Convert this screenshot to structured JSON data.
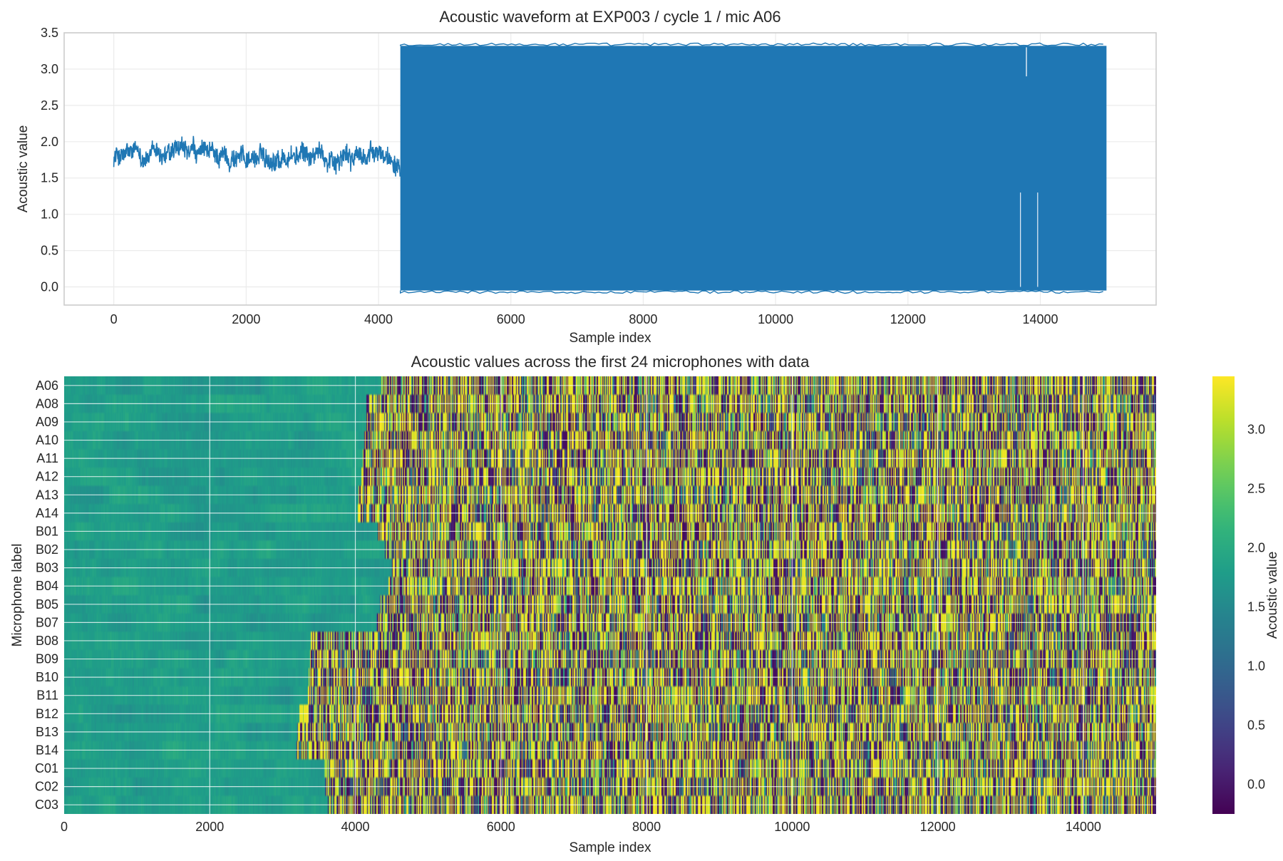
{
  "figure": {
    "background": "#ffffff",
    "line_color": "#1f77b4",
    "grid_color": "#ebebeb",
    "spine_color": "#cccccc",
    "colormap": "viridis"
  },
  "chart_data": [
    {
      "type": "line",
      "title": "Acoustic waveform at EXP003 / cycle 1 / mic A06",
      "xlabel": "Sample index",
      "ylabel": "Acoustic value",
      "xlim": [
        -750,
        15750
      ],
      "ylim": [
        -0.25,
        3.5
      ],
      "xticks": [
        0,
        2000,
        4000,
        6000,
        8000,
        10000,
        12000,
        14000
      ],
      "yticks": [
        0.0,
        0.5,
        1.0,
        1.5,
        2.0,
        2.5,
        3.0,
        3.5
      ],
      "xtick_labels": [
        "0",
        "2000",
        "4000",
        "6000",
        "8000",
        "10000",
        "12000",
        "14000"
      ],
      "ytick_labels": [
        "0.0",
        "0.5",
        "1.0",
        "1.5",
        "2.0",
        "2.5",
        "3.0",
        "3.5"
      ],
      "grid": true,
      "series": [
        {
          "n_samples": 15000,
          "quiet_segment": {
            "x_range": [
              0,
              4330
            ],
            "baseline": 1.8,
            "min": 1.38,
            "max": 2.18
          },
          "active_segment": {
            "x_range": [
              4330,
              15000
            ],
            "low": -0.05,
            "high": 3.32
          },
          "low_spikes_at": [
            13700,
            13960
          ],
          "gap_at": 13790
        }
      ]
    },
    {
      "type": "heatmap",
      "title": "Acoustic values across the first 24 microphones with data",
      "xlabel": "Sample index",
      "ylabel": "Microphone label",
      "xlim": [
        0,
        15000
      ],
      "xticks": [
        0,
        2000,
        4000,
        6000,
        8000,
        10000,
        12000,
        14000
      ],
      "xtick_labels": [
        "0",
        "2000",
        "4000",
        "6000",
        "8000",
        "10000",
        "12000",
        "14000"
      ],
      "rows": [
        "A06",
        "A08",
        "A09",
        "A10",
        "A11",
        "A12",
        "A13",
        "A14",
        "B01",
        "B02",
        "B03",
        "B04",
        "B05",
        "B07",
        "B08",
        "B09",
        "B10",
        "B11",
        "B12",
        "B13",
        "B14",
        "C01",
        "C02",
        "C03"
      ],
      "onset_sample": [
        4350,
        4150,
        4150,
        4120,
        4100,
        4080,
        4040,
        4030,
        4300,
        4400,
        4500,
        4450,
        4330,
        4280,
        3380,
        3370,
        3350,
        3340,
        3230,
        3200,
        3190,
        3570,
        3580,
        3620
      ],
      "quiet_value": 1.8,
      "active_range": [
        -0.25,
        3.45
      ],
      "grid": true,
      "colorbar": {
        "label": "Acoustic value",
        "vmin": -0.25,
        "vmax": 3.45,
        "ticks": [
          0.0,
          0.5,
          1.0,
          1.5,
          2.0,
          2.5,
          3.0
        ],
        "tick_labels": [
          "0.0",
          "0.5",
          "1.0",
          "1.5",
          "2.0",
          "2.5",
          "3.0"
        ]
      }
    }
  ]
}
